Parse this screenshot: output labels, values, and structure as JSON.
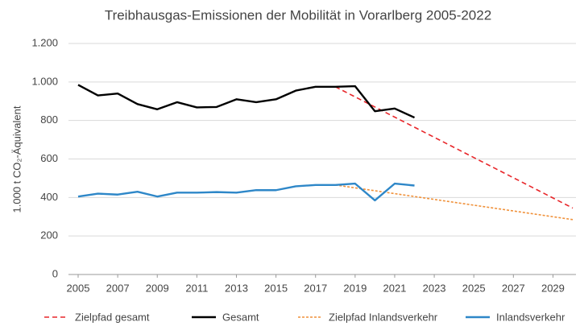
{
  "chart_data": {
    "type": "line",
    "title": "Treibhausgas-Emissionen der Mobilität in Vorarlberg 2005-2022",
    "y_label": "1.000 t CO₂-Äquivalent",
    "xlim": [
      2005,
      2030
    ],
    "xticks": [
      2005,
      2007,
      2009,
      2011,
      2013,
      2015,
      2017,
      2019,
      2021,
      2023,
      2025,
      2027,
      2029
    ],
    "ylim": [
      0,
      1200
    ],
    "yticks": [
      0,
      200,
      400,
      600,
      800,
      {
        "value": 1000,
        "label": "1.000"
      },
      {
        "value": 1200,
        "label": "1.200"
      }
    ],
    "grid": true,
    "legend": "bottom",
    "series": [
      {
        "name": "Zielpfad gesamt",
        "color": "#e8262a",
        "line_style": "dashed",
        "x": [
          2018,
          2030
        ],
        "values": [
          975,
          345
        ]
      },
      {
        "name": "Gesamt",
        "color": "#000000",
        "line_style": "solid",
        "x": [
          2005,
          2006,
          2007,
          2008,
          2009,
          2010,
          2011,
          2012,
          2013,
          2014,
          2015,
          2016,
          2017,
          2018,
          2019,
          2020,
          2021,
          2022
        ],
        "values": [
          985,
          930,
          940,
          885,
          858,
          895,
          868,
          870,
          910,
          895,
          910,
          955,
          975,
          975,
          978,
          848,
          862,
          815
        ]
      },
      {
        "name": "Zielpfad Inlandsverkehr",
        "color": "#f0913a",
        "line_style": "dotted",
        "x": [
          2018,
          2030
        ],
        "values": [
          465,
          285
        ]
      },
      {
        "name": "Inlandsverkehr",
        "color": "#2e87c8",
        "line_style": "solid",
        "x": [
          2005,
          2006,
          2007,
          2008,
          2009,
          2010,
          2011,
          2012,
          2013,
          2014,
          2015,
          2016,
          2017,
          2018,
          2019,
          2020,
          2021,
          2022
        ],
        "values": [
          405,
          420,
          415,
          430,
          405,
          425,
          425,
          428,
          425,
          438,
          438,
          458,
          465,
          465,
          472,
          385,
          472,
          462
        ]
      }
    ]
  }
}
